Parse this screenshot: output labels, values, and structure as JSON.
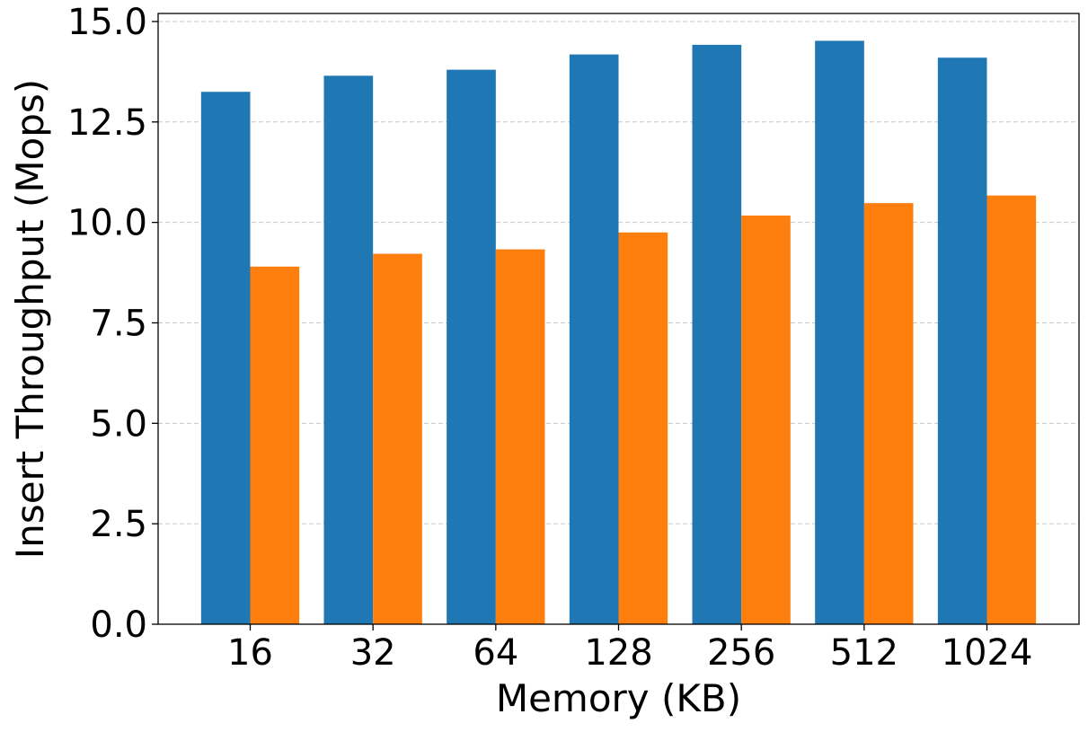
{
  "chart_data": {
    "type": "bar",
    "title": "",
    "xlabel": "Memory (KB)",
    "ylabel": "Insert Throughput (Mops)",
    "categories": [
      "16",
      "32",
      "64",
      "128",
      "256",
      "512",
      "1024"
    ],
    "series": [
      {
        "color": "#1f77b4",
        "values": [
          13.25,
          13.65,
          13.8,
          14.18,
          14.42,
          14.52,
          14.1
        ]
      },
      {
        "color": "#ff7f0e",
        "values": [
          8.9,
          9.22,
          9.33,
          9.75,
          10.17,
          10.48,
          10.67
        ]
      }
    ],
    "ylim": [
      0,
      15.2
    ],
    "yticks": [
      "0.0",
      "2.5",
      "5.0",
      "7.5",
      "10.0",
      "12.5",
      "15.0"
    ],
    "grid": "horizontal dashed",
    "legend": "none"
  }
}
